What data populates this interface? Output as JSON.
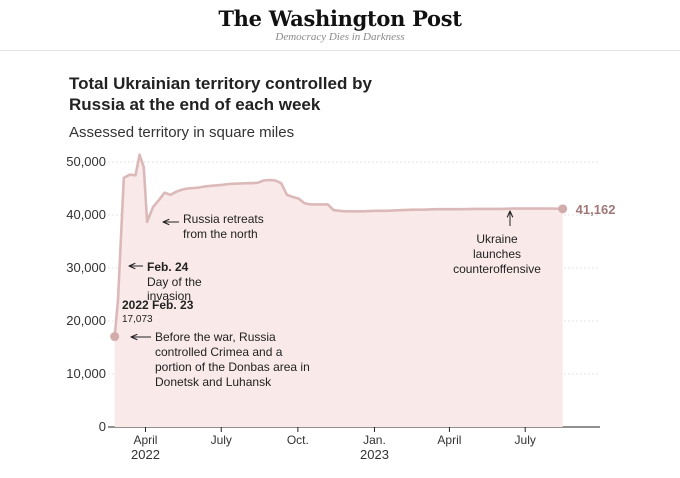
{
  "header": {
    "brand": "The Washington Post",
    "tagline": "Democracy Dies in Darkness"
  },
  "chart_data": {
    "type": "area",
    "title": "Total Ukrainian territory controlled by Russia at the end of each week",
    "subtitle": "Assessed territory in square miles",
    "xlabel": "",
    "ylabel": "",
    "ylim": [
      0,
      50000
    ],
    "yticks": [
      0,
      10000,
      20000,
      30000,
      40000,
      50000
    ],
    "ytick_labels": [
      "0",
      "10,000",
      "20,000",
      "30,000",
      "40,000",
      "50,000"
    ],
    "xlim": [
      "2022-02-15",
      "2023-08-31"
    ],
    "xticks": [
      {
        "date": "2022-04-01",
        "label": "April",
        "year": "2022"
      },
      {
        "date": "2022-07-01",
        "label": "July",
        "year": ""
      },
      {
        "date": "2022-10-01",
        "label": "Oct.",
        "year": ""
      },
      {
        "date": "2023-01-01",
        "label": "Jan.",
        "year": "2023"
      },
      {
        "date": "2023-04-01",
        "label": "April",
        "year": ""
      },
      {
        "date": "2023-07-01",
        "label": "July",
        "year": ""
      }
    ],
    "grid": "horizontal",
    "colors": {
      "line": "#dcb9b9",
      "fill": "#f9e9e9",
      "endpoint": "#d2abab",
      "endlabel": "#a07878"
    },
    "series": [
      {
        "x": [
          "2022-02-23",
          "2022-02-27",
          "2022-03-06",
          "2022-03-13",
          "2022-03-20",
          "2022-03-25",
          "2022-03-30",
          "2022-04-03",
          "2022-04-10",
          "2022-04-17",
          "2022-04-24",
          "2022-05-01",
          "2022-05-08",
          "2022-05-15",
          "2022-05-22",
          "2022-05-29",
          "2022-06-05",
          "2022-06-12",
          "2022-06-19",
          "2022-06-26",
          "2022-07-03",
          "2022-07-10",
          "2022-07-17",
          "2022-07-24",
          "2022-07-31",
          "2022-08-07",
          "2022-08-14",
          "2022-08-21",
          "2022-08-28",
          "2022-09-04",
          "2022-09-11",
          "2022-09-18",
          "2022-09-25",
          "2022-10-02",
          "2022-10-09",
          "2022-10-16",
          "2022-10-23",
          "2022-10-30",
          "2022-11-06",
          "2022-11-13",
          "2022-11-20",
          "2022-11-27",
          "2022-12-04",
          "2022-12-18",
          "2023-01-01",
          "2023-01-15",
          "2023-02-01",
          "2023-02-15",
          "2023-03-01",
          "2023-03-15",
          "2023-04-01",
          "2023-04-15",
          "2023-05-01",
          "2023-05-15",
          "2023-06-01",
          "2023-06-15",
          "2023-07-01",
          "2023-07-15",
          "2023-08-01",
          "2023-08-15"
        ],
        "values": [
          17073,
          24000,
          47000,
          47600,
          47500,
          51400,
          49000,
          38700,
          41500,
          42800,
          44200,
          43800,
          44400,
          44800,
          45000,
          45100,
          45200,
          45400,
          45500,
          45600,
          45700,
          45850,
          45900,
          45950,
          46000,
          46000,
          46100,
          46500,
          46600,
          46500,
          46000,
          43800,
          43400,
          43100,
          42200,
          42000,
          42000,
          42000,
          42000,
          40900,
          40800,
          40700,
          40700,
          40700,
          40800,
          40800,
          40900,
          41000,
          41000,
          41100,
          41100,
          41100,
          41150,
          41150,
          41150,
          41200,
          41200,
          41200,
          41200,
          41162
        ]
      }
    ],
    "end_label": "41,162",
    "annotations": [
      {
        "bold": "2022 Feb. 23",
        "lines": [
          "17,073"
        ]
      },
      {
        "bold": "",
        "lines": [
          "Before the war, Russia",
          "controlled Crimea and a",
          "portion of the Donbas area in",
          "Donetsk and Luhansk"
        ]
      },
      {
        "bold": "Feb. 24",
        "lines": [
          "Day of the",
          "invasion"
        ]
      },
      {
        "bold": "",
        "lines": [
          "Russia retreats",
          "from the north"
        ]
      },
      {
        "bold": "",
        "lines": [
          "Ukraine",
          "launches",
          "counteroffensive"
        ]
      }
    ]
  }
}
